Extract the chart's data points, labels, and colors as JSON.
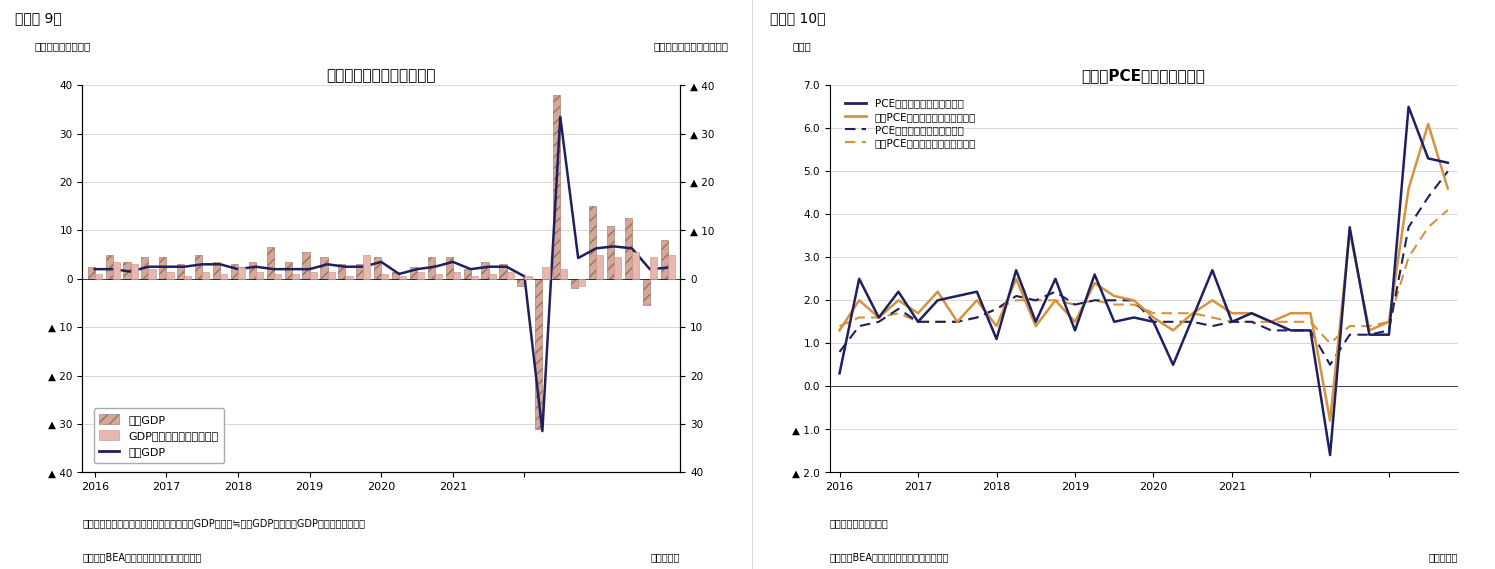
{
  "fig9_title": "米国の名目と実質の成長率",
  "fig9_label_left": "（前期比年率、％）",
  "fig9_label_right": "（前期比年率、％、逆軸）",
  "fig9_header": "（図表 9）",
  "fig9_note": "（注）季節調整済系列の前期比年率、実質GDP伸び率≒名目GDP伸び率－GDPデフレータ伸び率",
  "fig9_source": "（資料）BEAよりニッセイ基礎研究所作成",
  "fig9_quarter": "（四半期）",
  "fig10_title": "米国のPCE価格指数伸び率",
  "fig10_label_left": "（％）",
  "fig10_header": "（図表 10）",
  "fig10_note": "（注）季節調整済系列",
  "fig10_source": "（資料）BEAよりニッセイ基礎研究所作成",
  "fig10_quarter": "（四半期）",
  "nominal_gdp": [
    2.5,
    5.0,
    3.5,
    4.5,
    4.5,
    3.0,
    5.0,
    3.5,
    3.0,
    3.5,
    6.5,
    3.5,
    5.5,
    4.5,
    3.0,
    3.0,
    4.5,
    1.5,
    2.5,
    4.5,
    4.5,
    2.0,
    3.5,
    3.0,
    -1.5,
    -31.0,
    38.0,
    -2.0,
    15.0,
    11.0,
    12.5,
    -5.5,
    8.0
  ],
  "deflator": [
    -1.0,
    -3.5,
    -3.0,
    -2.0,
    -1.5,
    -0.5,
    -1.5,
    -1.0,
    -2.5,
    -1.5,
    -1.0,
    -1.0,
    -1.5,
    -1.5,
    -0.5,
    -5.0,
    -1.0,
    -0.5,
    -1.5,
    -1.0,
    -1.5,
    -0.5,
    -1.0,
    -1.5,
    -0.5,
    -2.5,
    -2.0,
    1.5,
    -5.0,
    -4.5,
    -5.5,
    -4.5,
    -5.0
  ],
  "real_gdp": [
    2.0,
    2.0,
    1.5,
    2.5,
    2.5,
    2.5,
    3.0,
    3.0,
    2.0,
    2.5,
    2.0,
    2.0,
    2.0,
    3.0,
    2.5,
    2.5,
    3.5,
    1.0,
    2.0,
    2.5,
    3.5,
    2.0,
    2.5,
    2.5,
    0.5,
    -31.5,
    33.5,
    4.3,
    6.3,
    6.7,
    6.3,
    2.0,
    2.3
  ],
  "n_bars": 33,
  "nominal_hatch_color": "#c8a090",
  "nominal_edge_color": "#a07860",
  "deflator_color": "#e8b4b0",
  "deflator_edge_color": "#d09090",
  "real_gdp_color": "#1e2060",
  "pce_qoq": [
    0.3,
    2.5,
    1.6,
    2.2,
    1.5,
    2.0,
    2.1,
    2.2,
    1.1,
    2.7,
    1.5,
    2.5,
    1.3,
    2.6,
    1.5,
    1.6,
    1.5,
    0.5,
    1.6,
    2.7,
    1.5,
    1.7,
    1.5,
    1.3,
    1.3,
    -1.6,
    3.7,
    1.2,
    1.2,
    6.5,
    5.3,
    5.2
  ],
  "core_pce_qoq": [
    1.3,
    2.0,
    1.6,
    2.0,
    1.7,
    2.2,
    1.5,
    2.0,
    1.4,
    2.5,
    1.4,
    2.0,
    1.5,
    2.4,
    2.1,
    2.0,
    1.6,
    1.3,
    1.7,
    2.0,
    1.7,
    1.7,
    1.5,
    1.7,
    1.7,
    -0.8,
    3.6,
    1.3,
    1.5,
    4.6,
    6.1,
    4.6
  ],
  "pce_yoy": [
    0.8,
    1.4,
    1.5,
    1.8,
    1.5,
    1.5,
    1.5,
    1.6,
    1.8,
    2.1,
    2.0,
    2.2,
    1.9,
    2.0,
    2.0,
    2.0,
    1.5,
    1.5,
    1.5,
    1.4,
    1.5,
    1.5,
    1.3,
    1.3,
    1.3,
    0.5,
    1.2,
    1.2,
    1.3,
    3.7,
    4.4,
    5.0
  ],
  "core_pce_yoy": [
    1.4,
    1.6,
    1.6,
    1.7,
    1.5,
    1.5,
    1.5,
    1.6,
    1.8,
    2.0,
    2.0,
    2.0,
    1.9,
    2.0,
    1.9,
    1.9,
    1.7,
    1.7,
    1.7,
    1.6,
    1.5,
    1.5,
    1.5,
    1.5,
    1.5,
    1.0,
    1.4,
    1.4,
    1.5,
    3.0,
    3.7,
    4.1
  ],
  "pce_dark_color": "#1e2060",
  "pce_orange_color": "#d4933c",
  "legend9_nominal": "名目GDP",
  "legend9_deflator": "GDPデフレータ（右逆軸）",
  "legend9_real": "実質GDP",
  "legend10_pce_qoq": "PCE価格指数（前期比年率）",
  "legend10_core_pce_qoq": "コアPCE価格指数（前期比年率）",
  "legend10_pce_yoy": "PCE価格指数（前年同期比）",
  "legend10_core_pce_yoy": "コアPCE価格指数（前年同期比）"
}
